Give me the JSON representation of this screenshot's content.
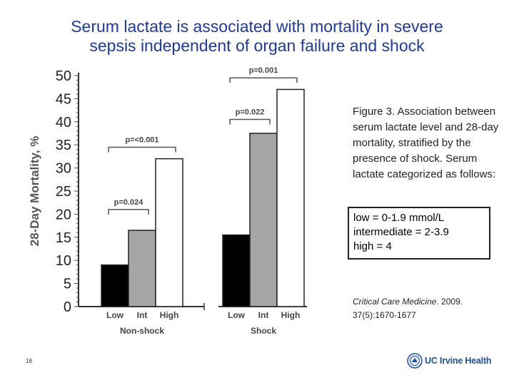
{
  "title": {
    "line1": "Serum lactate is associated with mortality in severe",
    "line2": "sepsis independent of organ failure and shock"
  },
  "caption": "Figure 3.  Association between serum lactate level and 28-day mortality, stratified by the presence of shock. Serum lactate categorized as follows:",
  "legend_box": {
    "low": "low = 0-1.9 mmol/L",
    "intermediate": "intermediate  = 2-3.9",
    "high": "high = 4"
  },
  "citation": {
    "journal": "Critical Care Medicine",
    "rest": ". 2009.",
    "volume": "37(5):1670-1677"
  },
  "slide_number": "18",
  "logo_text": "UC Irvine Health",
  "colors": {
    "title": "#1f3a93",
    "low": "#000000",
    "int": "#a6a6a6",
    "high": "#ffffff"
  },
  "chart_data": {
    "type": "bar",
    "ylabel": "28-Day Mortality, %",
    "ylim": [
      0,
      50
    ],
    "yticks": [
      "0",
      "5",
      "10",
      "15",
      "20",
      "25",
      "30",
      "35",
      "40",
      "45",
      "50"
    ],
    "groups": [
      "Non-shock",
      "Shock"
    ],
    "categories": [
      "Low",
      "Int",
      "High"
    ],
    "values": [
      [
        9,
        16.5,
        32
      ],
      [
        15.5,
        37.5,
        47
      ]
    ],
    "annotations": [
      {
        "text": "p=0.024",
        "group": 0,
        "from": 0,
        "to": 1,
        "level": 21
      },
      {
        "text": "p=<0.001",
        "group": 0,
        "from": 0,
        "to": 2,
        "level": 34.5
      },
      {
        "text": "p=0.022",
        "group": 1,
        "from": 0,
        "to": 1,
        "level": 40.5
      },
      {
        "text": "p=0.001",
        "group": 1,
        "from": 0,
        "to": 2,
        "level": 49.5
      }
    ],
    "grid": false,
    "legend": "none"
  }
}
